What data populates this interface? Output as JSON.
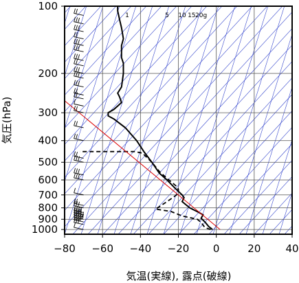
{
  "chart_data": {
    "type": "line",
    "title": "",
    "xlabel": "気温(実線), 露点(破線)",
    "ylabel": "気圧(hPa)",
    "xlim": [
      -80,
      40
    ],
    "ylim": [
      1050,
      100
    ],
    "y_scale": "log",
    "x_ticks": [
      "−80",
      "−60",
      "−40",
      "−20",
      "0",
      "20",
      "40"
    ],
    "x_tick_values": [
      -80,
      -60,
      -40,
      -20,
      0,
      20,
      40
    ],
    "y_ticks": [
      "100",
      "200",
      "300",
      "400",
      "500",
      "600",
      "700",
      "800",
      "900",
      "1000"
    ],
    "y_tick_values": [
      100,
      200,
      300,
      400,
      500,
      600,
      700,
      800,
      900,
      1000
    ],
    "mixing_ratio_labels": [
      "1",
      "5",
      "10",
      "15",
      "20g"
    ],
    "grid": true,
    "colors": {
      "temperature": "#000000",
      "dewpoint": "#000000",
      "reference_line": "#dd0000",
      "adiabats": "#3344cc",
      "grid": "#555555"
    },
    "series": [
      {
        "name": "",
        "style": "solid",
        "points": [
          [
            -2,
            1000
          ],
          [
            -4,
            970
          ],
          [
            -6,
            925
          ],
          [
            -8,
            890
          ],
          [
            -7,
            860
          ],
          [
            -9,
            840
          ],
          [
            -14,
            800
          ],
          [
            -18,
            750
          ],
          [
            -17,
            720
          ],
          [
            -18,
            700
          ],
          [
            -22,
            650
          ],
          [
            -26,
            600
          ],
          [
            -30,
            560
          ],
          [
            -34,
            500
          ],
          [
            -38,
            450
          ],
          [
            -42,
            400
          ],
          [
            -48,
            350
          ],
          [
            -54,
            320
          ],
          [
            -57,
            310
          ],
          [
            -57,
            300
          ],
          [
            -54,
            290
          ],
          [
            -52,
            280
          ],
          [
            -50,
            270
          ],
          [
            -51,
            255
          ],
          [
            -52,
            245
          ],
          [
            -50,
            230
          ],
          [
            -49,
            200
          ],
          [
            -49,
            180
          ],
          [
            -50,
            170
          ],
          [
            -50,
            150
          ],
          [
            -49,
            140
          ],
          [
            -50,
            125
          ],
          [
            -51,
            115
          ],
          [
            -52,
            105
          ],
          [
            -52,
            100
          ]
        ]
      },
      {
        "name": "",
        "style": "dashed",
        "points": [
          [
            -3,
            1000
          ],
          [
            -6,
            980
          ],
          [
            -8,
            930
          ],
          [
            -10,
            900
          ],
          [
            -18,
            870
          ],
          [
            -24,
            830
          ],
          [
            -32,
            810
          ],
          [
            -29,
            780
          ],
          [
            -25,
            740
          ],
          [
            -22,
            710
          ],
          [
            -20,
            690
          ],
          [
            -20,
            660
          ],
          [
            -21,
            640
          ],
          [
            -25,
            600
          ],
          [
            -30,
            550
          ],
          [
            -34,
            500
          ],
          [
            -39,
            455
          ],
          [
            -43,
            448
          ],
          [
            -72,
            448
          ]
        ]
      },
      {
        "name": "",
        "style": "solid-red",
        "points": [
          [
            2,
            1000
          ],
          [
            -80,
            265
          ]
        ]
      }
    ],
    "wind_barbs_x": -70,
    "wind_barbs": [
      {
        "p": 1000,
        "barbs": 1
      },
      {
        "p": 950,
        "barbs": 3
      },
      {
        "p": 925,
        "barbs": 4
      },
      {
        "p": 900,
        "barbs": 5
      },
      {
        "p": 880,
        "barbs": 5
      },
      {
        "p": 860,
        "barbs": 4
      },
      {
        "p": 840,
        "barbs": 4
      },
      {
        "p": 800,
        "barbs": 3
      },
      {
        "p": 780,
        "barbs": 2
      },
      {
        "p": 700,
        "barbs": 1
      },
      {
        "p": 600,
        "barbs": 3
      },
      {
        "p": 570,
        "barbs": 3
      },
      {
        "p": 500,
        "barbs": 3
      },
      {
        "p": 480,
        "barbs": 2
      },
      {
        "p": 400,
        "barbs": 2
      },
      {
        "p": 350,
        "barbs": 2
      },
      {
        "p": 300,
        "barbs": 2
      },
      {
        "p": 280,
        "barbs": 1
      },
      {
        "p": 260,
        "barbs": 2
      },
      {
        "p": 250,
        "barbs": 2
      },
      {
        "p": 230,
        "barbs": 3
      },
      {
        "p": 210,
        "barbs": 3
      },
      {
        "p": 200,
        "barbs": 3
      },
      {
        "p": 185,
        "barbs": 2
      },
      {
        "p": 175,
        "barbs": 3
      },
      {
        "p": 160,
        "barbs": 3
      },
      {
        "p": 150,
        "barbs": 3
      },
      {
        "p": 140,
        "barbs": 2
      },
      {
        "p": 130,
        "barbs": 3
      },
      {
        "p": 120,
        "barbs": 3
      },
      {
        "p": 110,
        "barbs": 2
      },
      {
        "p": 100,
        "barbs": 2
      }
    ]
  }
}
